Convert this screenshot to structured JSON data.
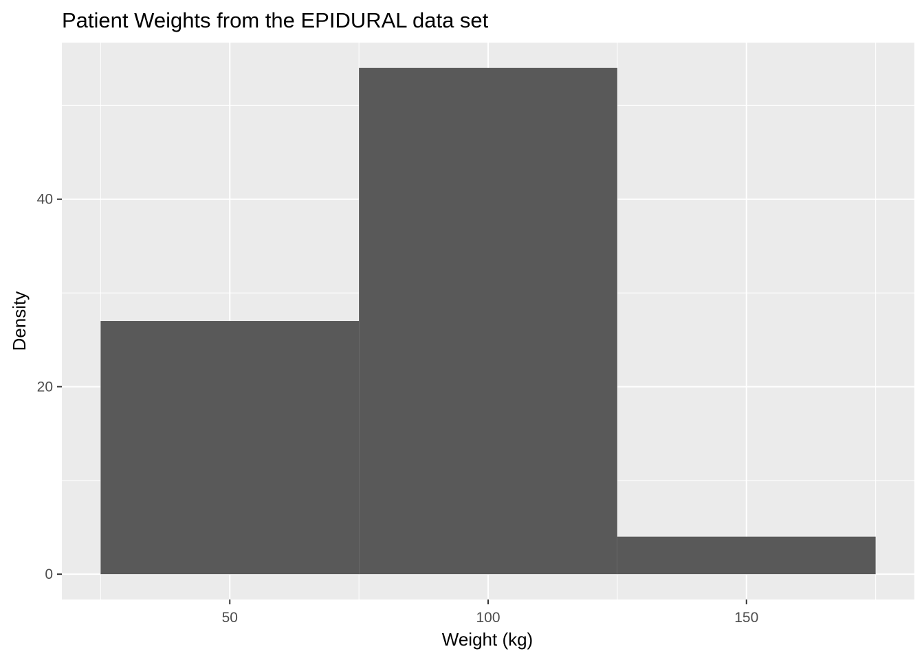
{
  "chart_data": {
    "type": "bar",
    "subtype": "histogram",
    "title": "Patient Weights from the EPIDURAL data set",
    "xlabel": "Weight (kg)",
    "ylabel": "Density",
    "bins": [
      {
        "x_start": 25,
        "x_end": 75,
        "value": 27
      },
      {
        "x_start": 75,
        "x_end": 125,
        "value": 54
      },
      {
        "x_start": 125,
        "x_end": 175,
        "value": 4
      }
    ],
    "xlim": [
      17.5,
      182.5
    ],
    "ylim": [
      -2.7,
      56.7
    ],
    "x_ticks": [
      50,
      100,
      150
    ],
    "x_tick_labels": [
      "50",
      "100",
      "150"
    ],
    "y_ticks": [
      0,
      20,
      40
    ],
    "y_tick_labels": [
      "0",
      "20",
      "40"
    ],
    "grid": true,
    "legend": "none",
    "colors": {
      "bar": "#595959",
      "panel_background": "#EBEBEB",
      "grid_line": "#FFFFFF",
      "tick_mark": "#333333",
      "tick_label": "#4D4D4D"
    }
  }
}
